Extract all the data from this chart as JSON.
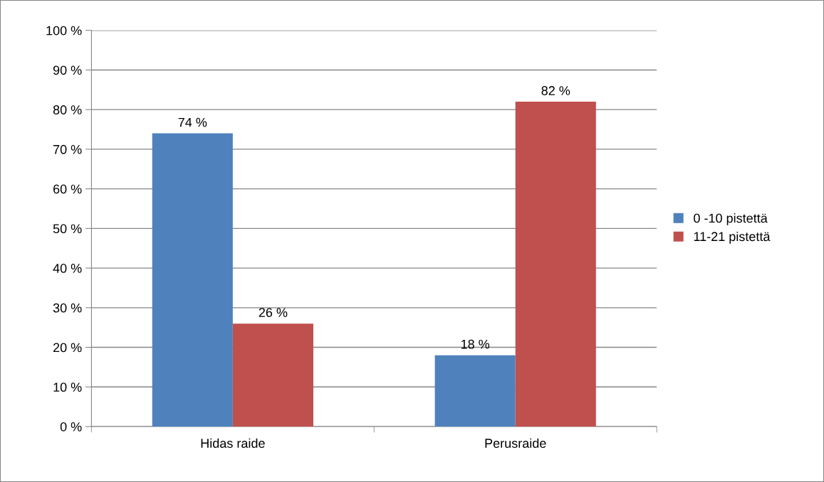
{
  "chart_data": {
    "type": "bar",
    "categories": [
      "Hidas raide",
      "Perusraide"
    ],
    "series": [
      {
        "name": "0 -10 pistettä",
        "color": "#4f81bd",
        "values": [
          74,
          18
        ],
        "value_labels": [
          "74 %",
          "18 %"
        ]
      },
      {
        "name": "11-21 pistettä",
        "color": "#c0504d",
        "values": [
          26,
          82
        ],
        "value_labels": [
          "26 %",
          "82 %"
        ]
      }
    ],
    "ylim": [
      0,
      100
    ],
    "yticks": [
      {
        "value": 0,
        "label": "0 %"
      },
      {
        "value": 10,
        "label": "10 %"
      },
      {
        "value": 20,
        "label": "20 %"
      },
      {
        "value": 30,
        "label": "30 %"
      },
      {
        "value": 40,
        "label": "40 %"
      },
      {
        "value": 50,
        "label": "50 %"
      },
      {
        "value": 60,
        "label": "60 %"
      },
      {
        "value": 70,
        "label": "70 %"
      },
      {
        "value": 80,
        "label": "80 %"
      },
      {
        "value": 90,
        "label": "90 %"
      },
      {
        "value": 100,
        "label": "100 %"
      }
    ],
    "grid": "y",
    "legend": "right"
  }
}
